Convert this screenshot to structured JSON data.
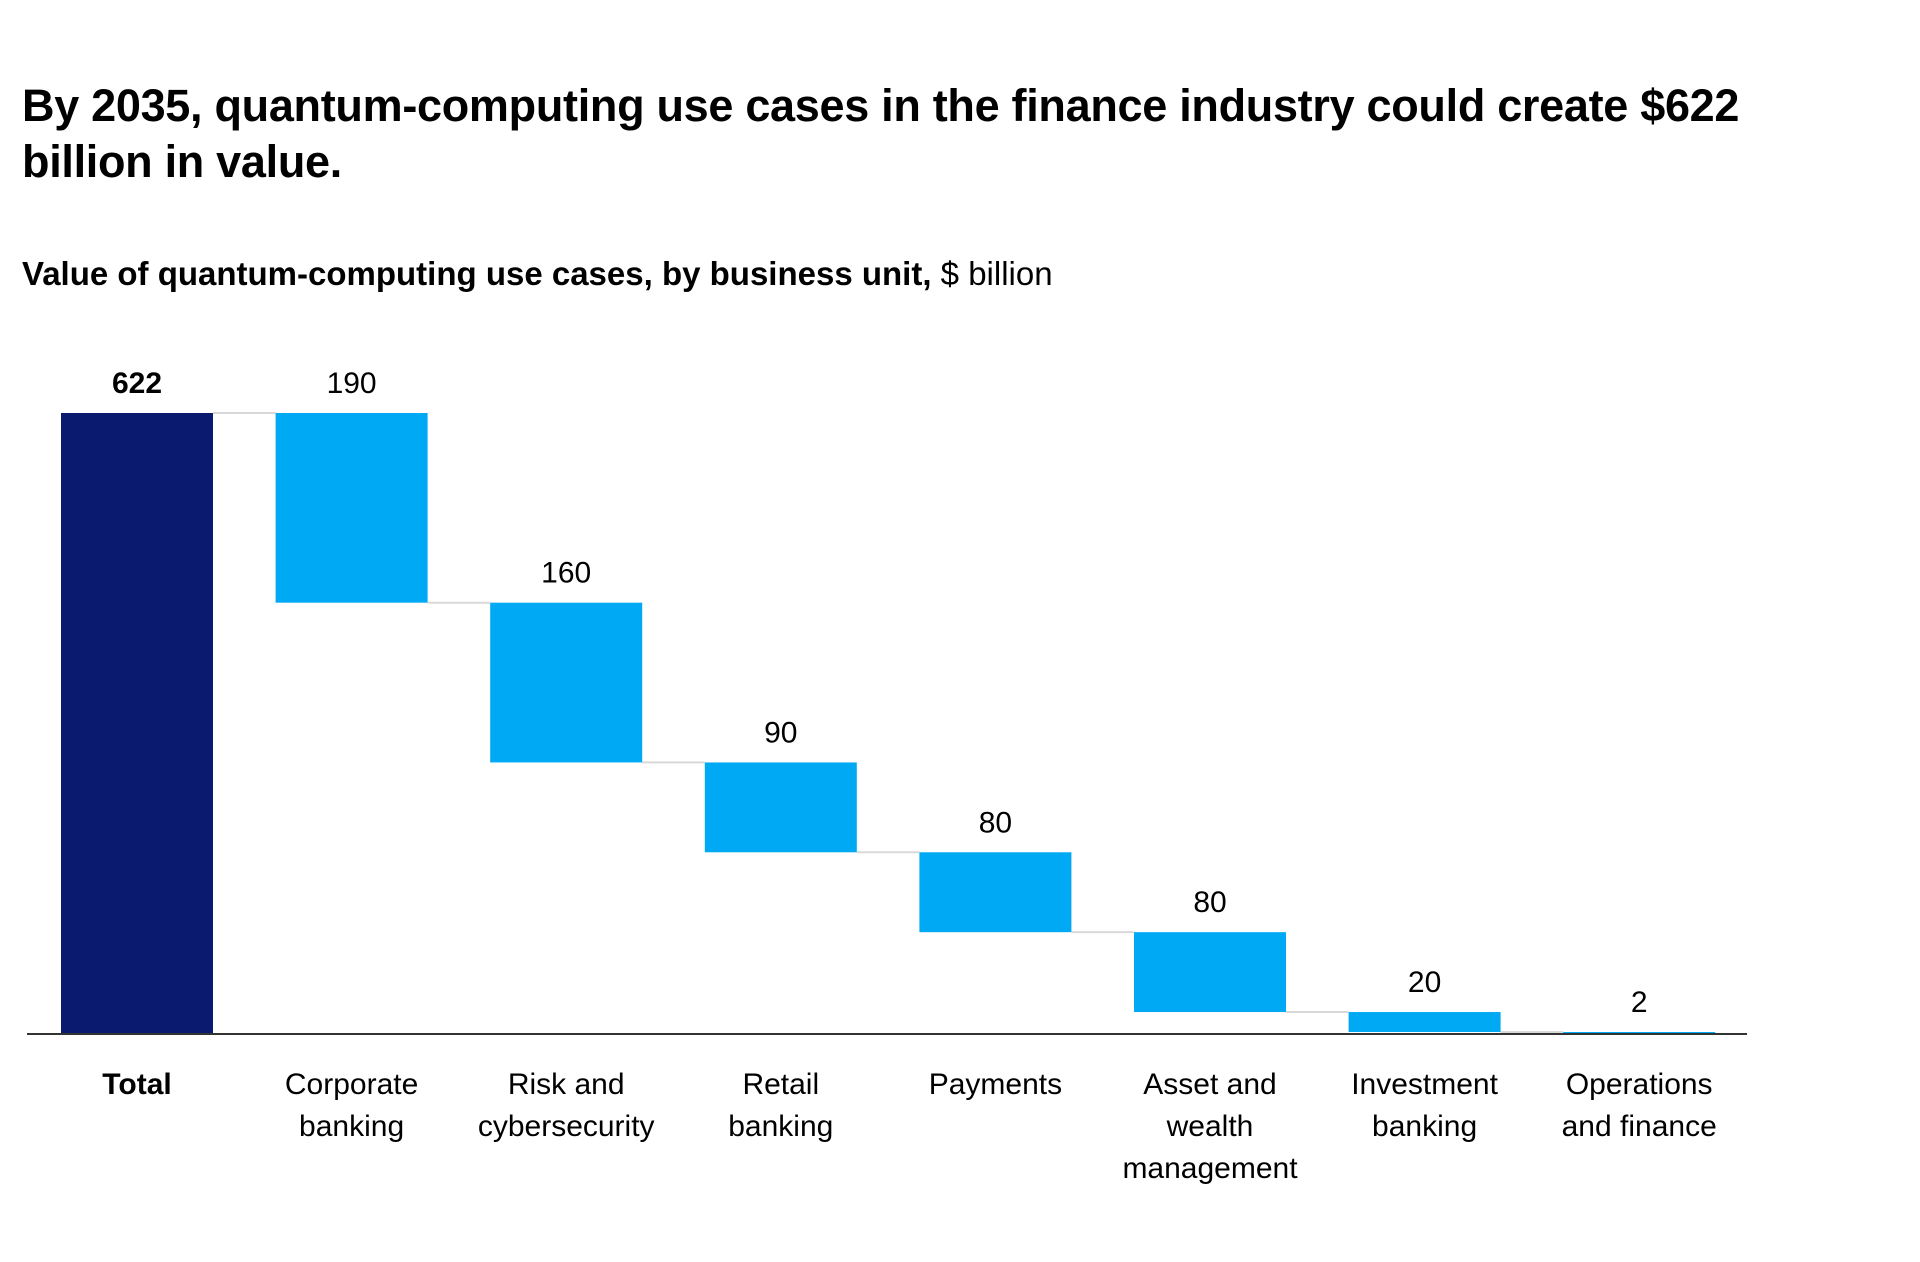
{
  "headline": "By 2035, quantum-computing use cases in the finance industry could create $622 billion in value.",
  "subtitle": {
    "bold": "Value of quantum-computing use cases, by business unit,",
    "unit": "$ billion"
  },
  "colors": {
    "total_bar": "#0a1a6e",
    "segment_bar": "#00a9f4",
    "baseline": "#333333",
    "connector": "#d9d9d9"
  },
  "chart_data": {
    "type": "bar",
    "subtype": "waterfall",
    "categories": [
      "Total",
      "Corporate banking",
      "Risk and cybersecurity",
      "Retail banking",
      "Payments",
      "Asset and wealth management",
      "Investment banking",
      "Operations and finance"
    ],
    "category_lines": [
      [
        "Total"
      ],
      [
        "Corporate",
        "banking"
      ],
      [
        "Risk and",
        "cybersecurity"
      ],
      [
        "Retail",
        "banking"
      ],
      [
        "Payments"
      ],
      [
        "Asset and",
        "wealth",
        "management"
      ],
      [
        "Investment",
        "banking"
      ],
      [
        "Operations",
        "and finance"
      ]
    ],
    "values": [
      622,
      190,
      160,
      90,
      80,
      80,
      20,
      2
    ],
    "value_labels": [
      "622",
      "190",
      "160",
      "90",
      "80",
      "80",
      "20",
      "2"
    ],
    "ylim": [
      0,
      622
    ],
    "grid": false,
    "legend": "none"
  }
}
